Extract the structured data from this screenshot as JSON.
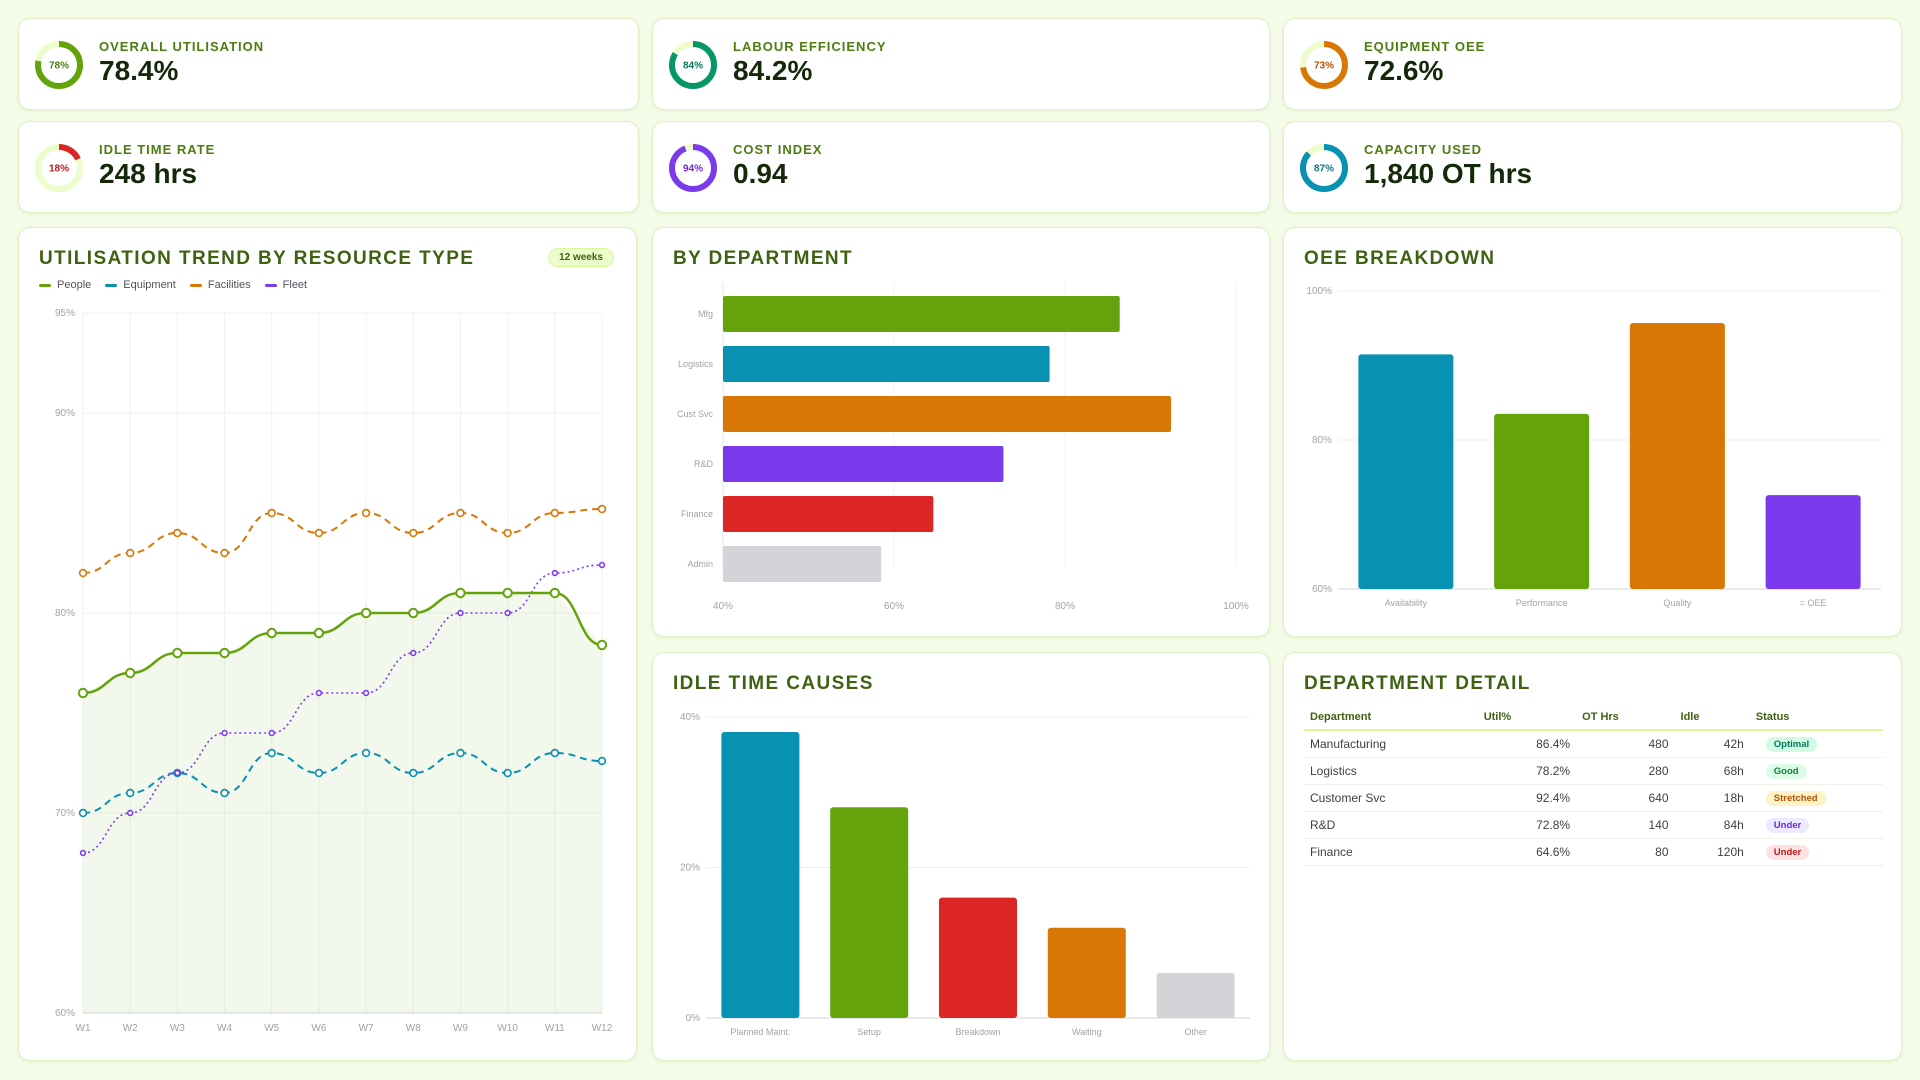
{
  "kpis": [
    {
      "label": "OVERALL UTILISATION",
      "value": "78.4%",
      "ring_label": "78%",
      "pct": 78,
      "color": "#65a30d"
    },
    {
      "label": "LABOUR EFFICIENCY",
      "value": "84.2%",
      "ring_label": "84%",
      "pct": 84,
      "color": "#059669"
    },
    {
      "label": "EQUIPMENT OEE",
      "value": "72.6%",
      "ring_label": "73%",
      "pct": 73,
      "color": "#d97706"
    },
    {
      "label": "IDLE TIME RATE",
      "value": "248 hrs",
      "ring_label": "18%",
      "pct": 18,
      "color": "#dc2626"
    },
    {
      "label": "COST INDEX",
      "value": "0.94",
      "ring_label": "94%",
      "pct": 94,
      "color": "#7c3aed"
    },
    {
      "label": "CAPACITY USED",
      "value": "1,840 OT hrs",
      "ring_label": "87%",
      "pct": 87,
      "color": "#0891b2"
    }
  ],
  "trend": {
    "title": "UTILISATION TREND BY RESOURCE TYPE",
    "badge": "12 weeks"
  },
  "departments": {
    "title": "BY DEPARTMENT"
  },
  "oee": {
    "title": "OEE BREAKDOWN"
  },
  "idle": {
    "title": "IDLE TIME CAUSES"
  },
  "detail": {
    "title": "DEPARTMENT DETAIL",
    "headers": [
      "Department",
      "Util%",
      "OT Hrs",
      "Idle",
      "Status"
    ],
    "rows": [
      {
        "dept": "Manufacturing",
        "util": "86.4%",
        "ot": "480",
        "idle": "42h",
        "status": "Optimal",
        "bg": "#d1fae5",
        "fg": "#047857"
      },
      {
        "dept": "Logistics",
        "util": "78.2%",
        "ot": "280",
        "idle": "68h",
        "status": "Good",
        "bg": "#dcfce7",
        "fg": "#15803d"
      },
      {
        "dept": "Customer Svc",
        "util": "92.4%",
        "ot": "640",
        "idle": "18h",
        "status": "Stretched",
        "bg": "#fef3c7",
        "fg": "#b45309"
      },
      {
        "dept": "R&D",
        "util": "72.8%",
        "ot": "140",
        "idle": "84h",
        "status": "Under",
        "bg": "#ede9fe",
        "fg": "#6d28d9"
      },
      {
        "dept": "Finance",
        "util": "64.6%",
        "ot": "80",
        "idle": "120h",
        "status": "Under",
        "bg": "#fee2e2",
        "fg": "#b91c1c"
      }
    ]
  },
  "chart_data": [
    {
      "type": "line",
      "x": [
        "W1",
        "W2",
        "W3",
        "W4",
        "W5",
        "W6",
        "W7",
        "W8",
        "W9",
        "W10",
        "W11",
        "W12"
      ],
      "ylim": [
        60,
        95
      ],
      "yticks": [
        "60%",
        "70%",
        "80%",
        "90%",
        "95%"
      ],
      "ytick_values": [
        60,
        70,
        80,
        90,
        95
      ],
      "legend_position": "top-left",
      "series": [
        {
          "name": "People",
          "color": "#65a30d",
          "style": "solid",
          "values": [
            76,
            77,
            78,
            78,
            79,
            79,
            80,
            80,
            81,
            81,
            81,
            78.4
          ]
        },
        {
          "name": "Equipment",
          "color": "#0891b2",
          "style": "dashed",
          "values": [
            70,
            71,
            72,
            71,
            73,
            72,
            73,
            72,
            73,
            72,
            73,
            72.6
          ]
        },
        {
          "name": "Facilities",
          "color": "#d97706",
          "style": "dashed",
          "values": [
            82,
            83,
            84,
            83,
            85,
            84,
            85,
            84,
            85,
            84,
            85,
            85.2
          ]
        },
        {
          "name": "Fleet",
          "color": "#7c3aed",
          "style": "dotted",
          "values": [
            68,
            70,
            72,
            74,
            74,
            76,
            76,
            78,
            80,
            80,
            82,
            82.4
          ]
        }
      ]
    },
    {
      "type": "bar",
      "orientation": "horizontal",
      "categories": [
        "Mfg",
        "Logistics",
        "Cust Svc",
        "R&D",
        "Finance",
        "Admin"
      ],
      "values": [
        86.4,
        78.2,
        92.4,
        72.8,
        64.6,
        58.5
      ],
      "colors": [
        "#65a30d",
        "#0891b2",
        "#d97706",
        "#7c3aed",
        "#dc2626",
        "#d4d4d8"
      ],
      "xlim": [
        40,
        100
      ],
      "xticks": [
        "40%",
        "60%",
        "80%",
        "100%"
      ],
      "xtick_values": [
        40,
        60,
        80,
        100
      ]
    },
    {
      "type": "bar",
      "categories": [
        "Availability",
        "Performance",
        "Quality",
        "= OEE"
      ],
      "values": [
        91.5,
        83.5,
        95.7,
        72.6
      ],
      "colors": [
        "#0891b2",
        "#65a30d",
        "#d97706",
        "#7c3aed"
      ],
      "ylim": [
        60,
        100
      ],
      "yticks": [
        "60%",
        "80%",
        "100%"
      ],
      "ytick_values": [
        60,
        80,
        100
      ]
    },
    {
      "type": "bar",
      "categories": [
        "Planned Maint.",
        "Setup",
        "Breakdown",
        "Waiting",
        "Other"
      ],
      "values": [
        38,
        28,
        16,
        12,
        6
      ],
      "colors": [
        "#0891b2",
        "#65a30d",
        "#dc2626",
        "#d97706",
        "#d4d4d8"
      ],
      "ylim": [
        0,
        40
      ],
      "yticks": [
        "0%",
        "20%",
        "40%"
      ],
      "ytick_values": [
        0,
        20,
        40
      ]
    }
  ]
}
